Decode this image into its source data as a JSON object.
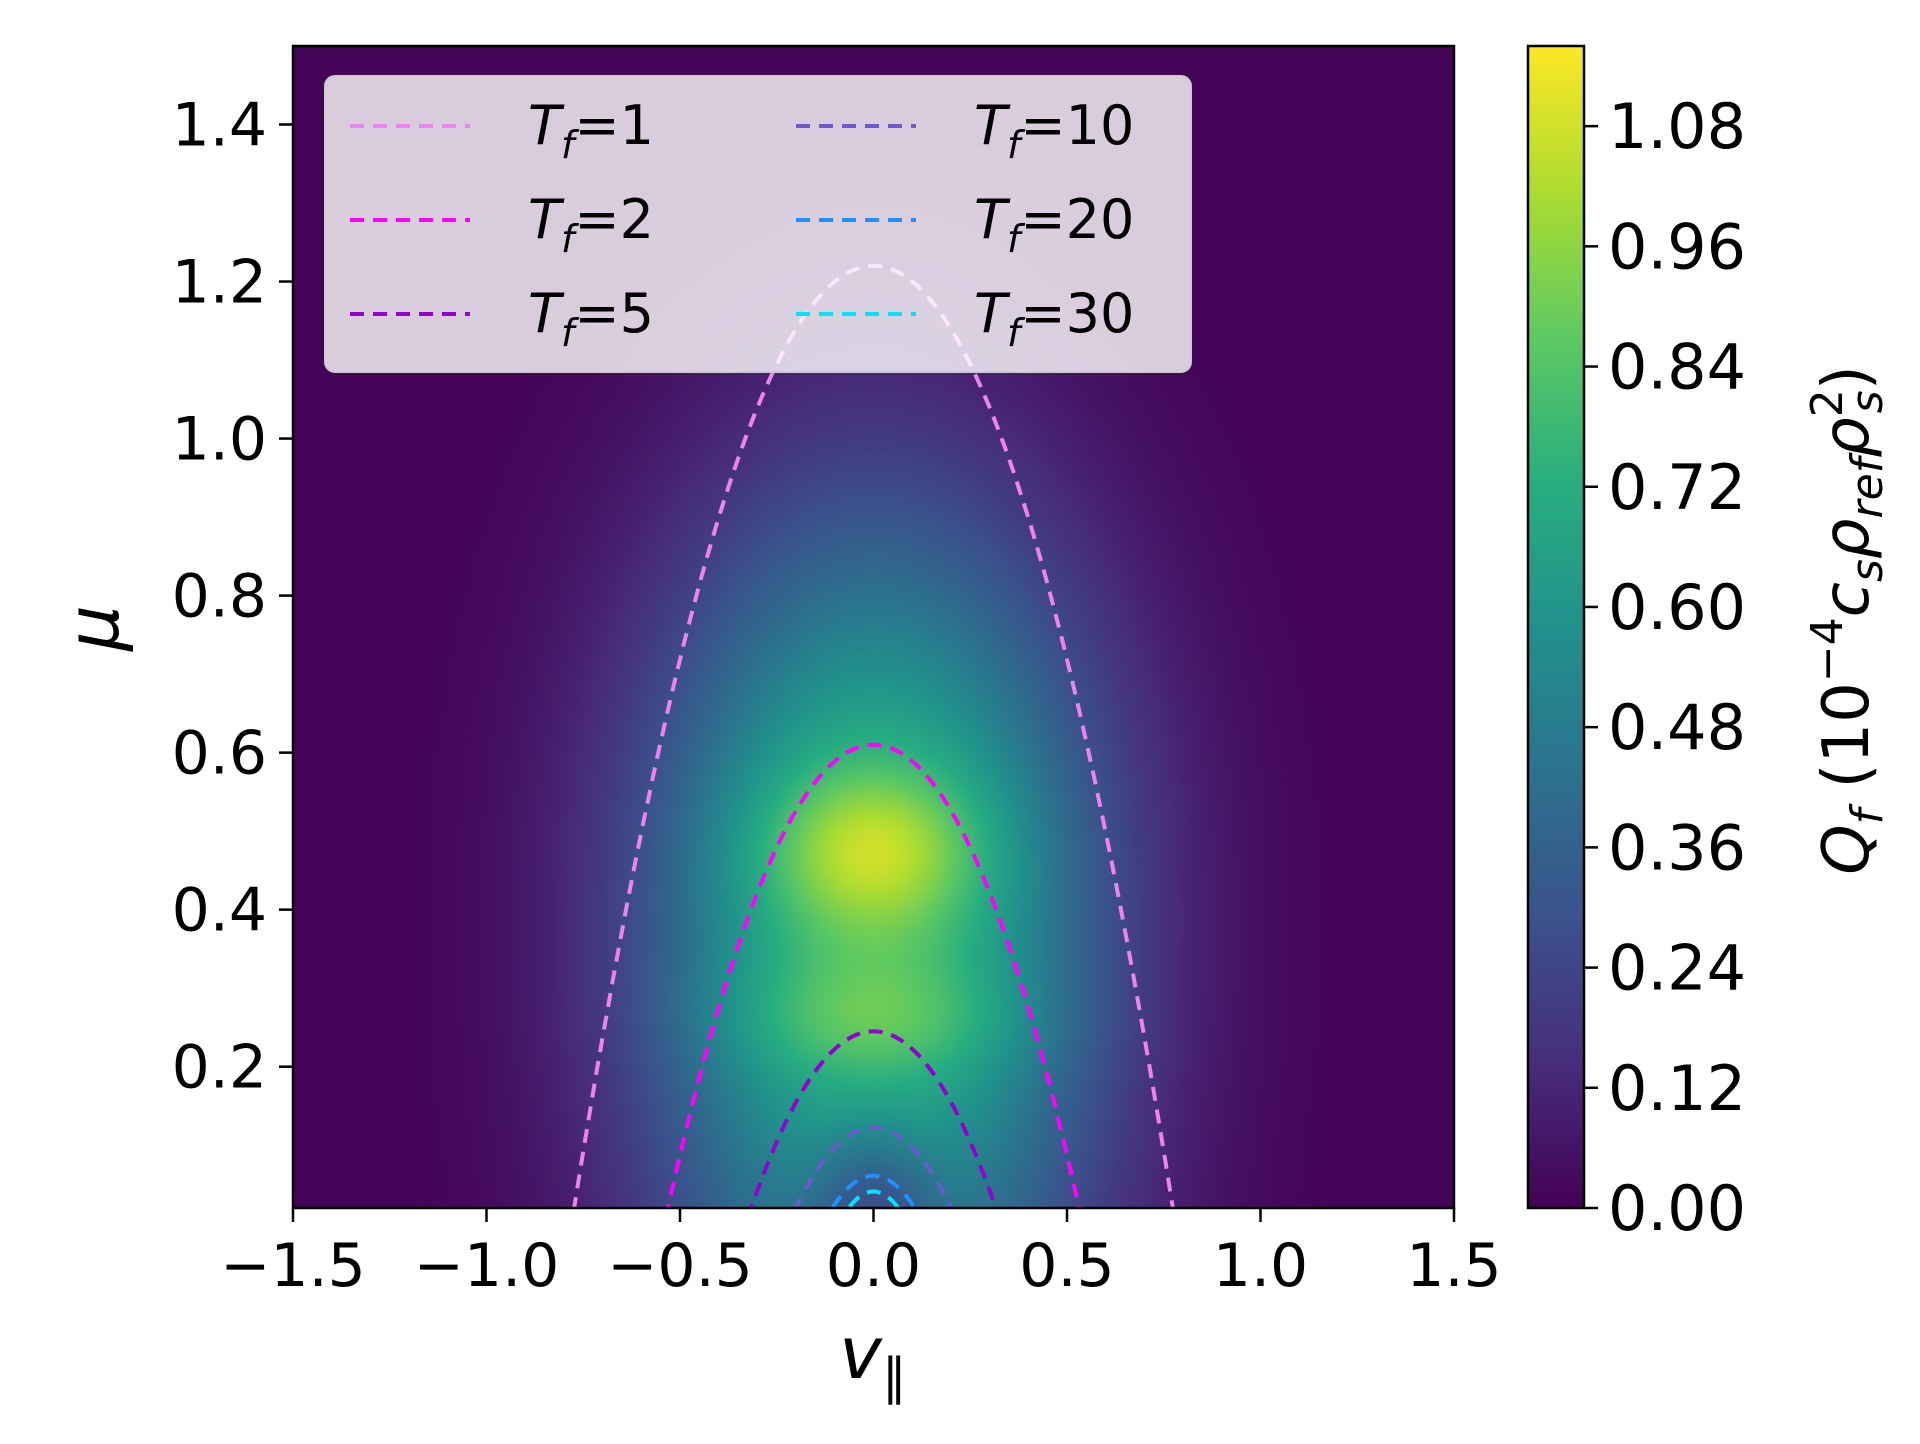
{
  "chart_data": {
    "type": "heatmap",
    "title": "",
    "xlabel": "v",
    "xlabel_subscript": "∥",
    "ylabel": "μ",
    "xlim": [
      -1.5,
      1.5
    ],
    "ylim": [
      0.02,
      1.5
    ],
    "x_ticks": [
      -1.5,
      -1.0,
      -0.5,
      0.0,
      0.5,
      1.0,
      1.5
    ],
    "x_tick_labels": [
      "−1.5",
      "−1.0",
      "−0.5",
      "0.0",
      "0.5",
      "1.0",
      "1.5"
    ],
    "y_ticks": [
      0.2,
      0.4,
      0.6,
      0.8,
      1.0,
      1.2,
      1.4
    ],
    "y_tick_labels": [
      "0.2",
      "0.4",
      "0.6",
      "0.8",
      "1.0",
      "1.2",
      "1.4"
    ],
    "grid": false,
    "colormap": "viridis",
    "colorbar": {
      "label_main": "Q",
      "label_sub": "f",
      "label_rest": " (10",
      "label_exp": "−4",
      "label_cs": "c",
      "label_cs_sub": "s",
      "label_rho": "ρ",
      "label_rho_sub": "ref",
      "label_rho2": "ρ",
      "label_rho2_sup": "2",
      "label_rho2_sub": "s",
      "label_close": ")",
      "range": [
        0.0,
        1.16
      ],
      "ticks": [
        0.0,
        0.12,
        0.24,
        0.36,
        0.48,
        0.6,
        0.72,
        0.84,
        0.96,
        1.08
      ],
      "tick_labels": [
        "0.00",
        "0.12",
        "0.24",
        "0.36",
        "0.48",
        "0.60",
        "0.72",
        "0.84",
        "0.96",
        "1.08"
      ]
    },
    "heatmap_peaks": [
      {
        "v": 0.0,
        "mu": 0.48,
        "value": 1.1
      },
      {
        "v": 0.0,
        "mu": 0.26,
        "value": 0.96
      }
    ],
    "legend": {
      "placement": "top-left",
      "columns": 2,
      "entries": [
        {
          "label_main": "T",
          "label_sub": "f",
          "label_value": "=1",
          "T": 1,
          "color": "#ee82ee"
        },
        {
          "label_main": "T",
          "label_sub": "f",
          "label_value": "=2",
          "T": 2,
          "color": "#ff00ff"
        },
        {
          "label_main": "T",
          "label_sub": "f",
          "label_value": "=5",
          "T": 5,
          "color": "#9400d3"
        },
        {
          "label_main": "T",
          "label_sub": "f",
          "label_value": "=10",
          "T": 10,
          "color": "#6a5acd"
        },
        {
          "label_main": "T",
          "label_sub": "f",
          "label_value": "=20",
          "T": 20,
          "color": "#1e90ff"
        },
        {
          "label_main": "T",
          "label_sub": "f",
          "label_value": "=30",
          "T": 30,
          "color": "#00e5ff"
        }
      ]
    },
    "series": [
      {
        "T": 1,
        "color": "#ee82ee",
        "style": "dashed",
        "vertex_mu": 1.22,
        "v_intercept": 0.78
      },
      {
        "T": 2,
        "color": "#ff00ff",
        "style": "dashed",
        "vertex_mu": 0.61,
        "v_intercept": 0.54
      },
      {
        "T": 5,
        "color": "#9400d3",
        "style": "dashed",
        "vertex_mu": 0.245,
        "v_intercept": 0.33
      },
      {
        "T": 10,
        "color": "#6a5acd",
        "style": "dashed",
        "vertex_mu": 0.122,
        "v_intercept": 0.22
      },
      {
        "T": 20,
        "color": "#1e90ff",
        "style": "dashed",
        "vertex_mu": 0.061,
        "v_intercept": 0.13
      },
      {
        "T": 30,
        "color": "#00e5ff",
        "style": "dashed",
        "vertex_mu": 0.041,
        "v_intercept": 0.09
      }
    ]
  }
}
